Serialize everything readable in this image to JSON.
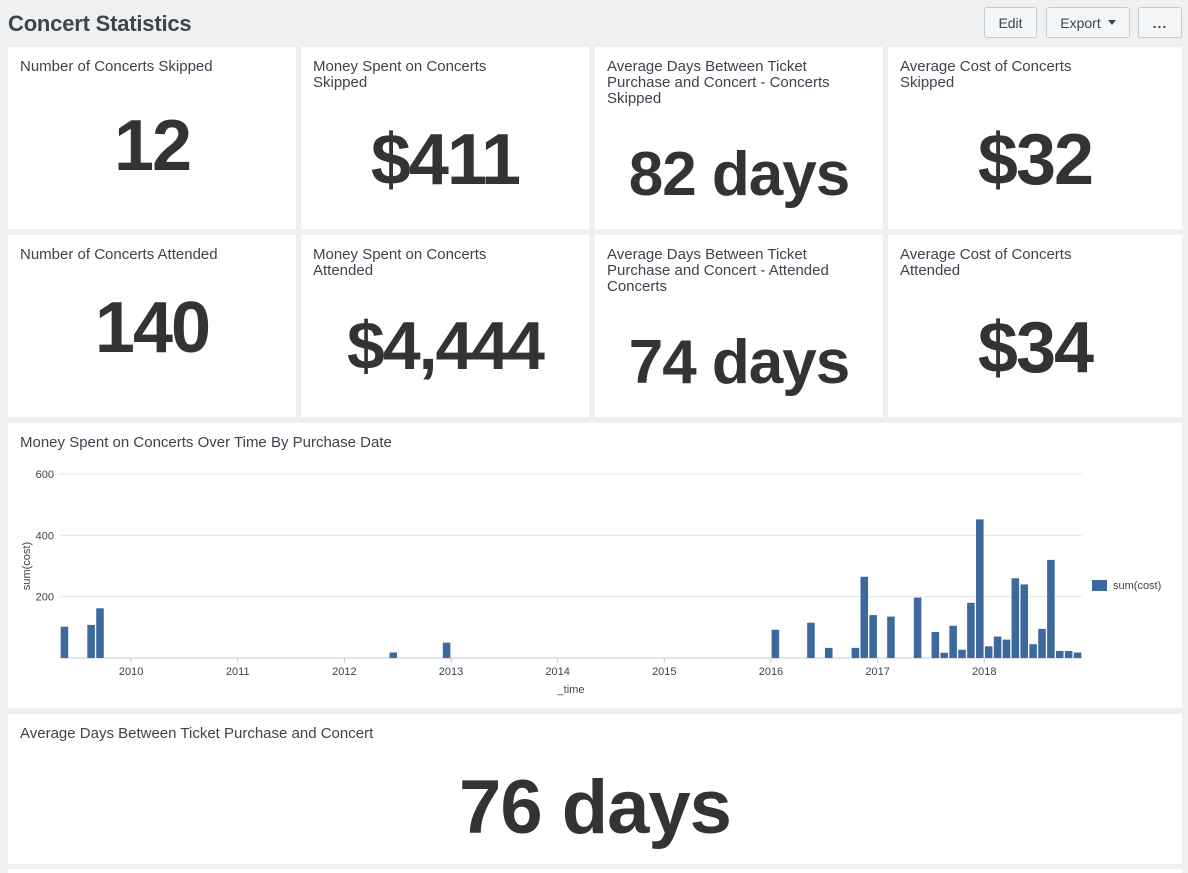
{
  "header": {
    "title": "Concert Statistics",
    "edit_label": "Edit",
    "export_label": "Export",
    "more_label": "..."
  },
  "row1": [
    {
      "title": "Number of Concerts Skipped",
      "value": "12"
    },
    {
      "title": "Money Spent on Concerts Skipped",
      "value": "$411"
    },
    {
      "title": "Average Days Between Ticket Purchase and Concert - Concerts Skipped",
      "value": "82 days"
    },
    {
      "title": "Average Cost of Concerts Skipped",
      "value": "$32"
    }
  ],
  "row2": [
    {
      "title": "Number of Concerts Attended",
      "value": "140"
    },
    {
      "title": "Money Spent on Concerts Attended",
      "value": "$4,444"
    },
    {
      "title": "Average Days Between Ticket Purchase and Concert - Attended Concerts",
      "value": "74 days"
    },
    {
      "title": "Average Cost of Concerts Attended",
      "value": "$34"
    }
  ],
  "chart_panel": {
    "title": "Money Spent on Concerts Over Time By Purchase Date"
  },
  "bottom_panel": {
    "title": "Average Days Between Ticket Purchase and Concert",
    "value": "76 days"
  },
  "colors": {
    "bar": "#3d6a9c",
    "background": "#eef0f2",
    "panel": "#ffffff"
  },
  "chart_data": {
    "type": "bar",
    "title": "Money Spent on Concerts Over Time By Purchase Date",
    "xlabel": "_time",
    "ylabel": "sum(cost)",
    "ylim": [
      0,
      600
    ],
    "yticks": [
      200,
      400,
      600
    ],
    "xlim": [
      "2009-05-01",
      "2018-12-01"
    ],
    "xticks": [
      "2010",
      "2011",
      "2012",
      "2013",
      "2014",
      "2015",
      "2016",
      "2017",
      "2018"
    ],
    "grid": true,
    "legend": "right",
    "series": [
      {
        "name": "sum(cost)",
        "points": [
          {
            "x": "2009-05",
            "y": 102
          },
          {
            "x": "2009-08",
            "y": 108
          },
          {
            "x": "2009-09",
            "y": 162
          },
          {
            "x": "2012-06",
            "y": 18
          },
          {
            "x": "2012-12",
            "y": 50
          },
          {
            "x": "2016-01",
            "y": 92
          },
          {
            "x": "2016-05",
            "y": 115
          },
          {
            "x": "2016-07",
            "y": 33
          },
          {
            "x": "2016-10",
            "y": 33
          },
          {
            "x": "2016-11",
            "y": 265
          },
          {
            "x": "2016-12",
            "y": 140
          },
          {
            "x": "2017-02",
            "y": 135
          },
          {
            "x": "2017-05",
            "y": 197
          },
          {
            "x": "2017-07",
            "y": 85
          },
          {
            "x": "2017-08",
            "y": 17
          },
          {
            "x": "2017-09",
            "y": 105
          },
          {
            "x": "2017-10",
            "y": 27
          },
          {
            "x": "2017-11",
            "y": 180
          },
          {
            "x": "2017-12",
            "y": 452
          },
          {
            "x": "2018-01",
            "y": 38
          },
          {
            "x": "2018-02",
            "y": 70
          },
          {
            "x": "2018-03",
            "y": 60
          },
          {
            "x": "2018-04",
            "y": 260
          },
          {
            "x": "2018-05",
            "y": 240
          },
          {
            "x": "2018-06",
            "y": 45
          },
          {
            "x": "2018-07",
            "y": 95
          },
          {
            "x": "2018-08",
            "y": 320
          },
          {
            "x": "2018-09",
            "y": 23
          },
          {
            "x": "2018-10",
            "y": 23
          },
          {
            "x": "2018-11",
            "y": 18
          }
        ]
      }
    ]
  }
}
